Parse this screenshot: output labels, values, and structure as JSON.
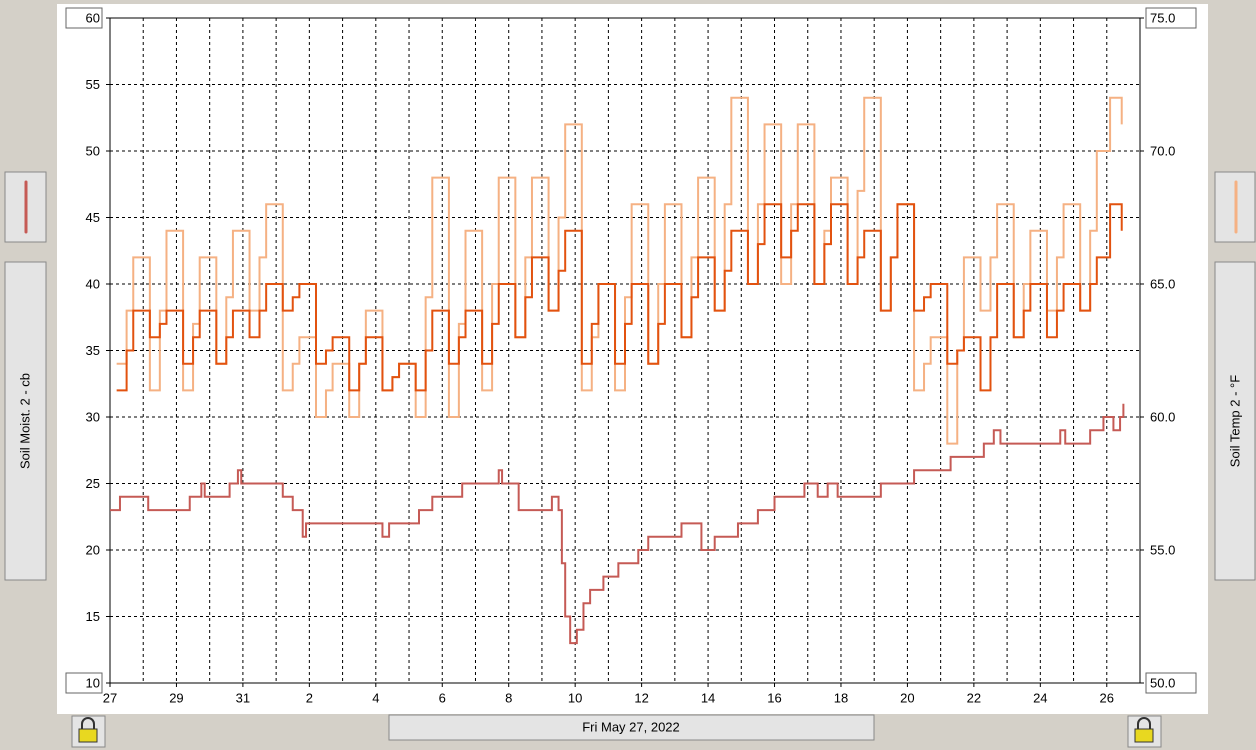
{
  "chart_data": {
    "type": "step-line",
    "ylabel": "Soil Moist. 2 - cb",
    "y2label": "Soil Temp 2 - °F",
    "date_label": "Fri May 27, 2022",
    "xlim": [
      0,
      31
    ],
    "xticks": [
      {
        "value": 0,
        "label": "27"
      },
      {
        "value": 2,
        "label": "29"
      },
      {
        "value": 4,
        "label": "31"
      },
      {
        "value": 6,
        "label": "2"
      },
      {
        "value": 8,
        "label": "4"
      },
      {
        "value": 10,
        "label": "6"
      },
      {
        "value": 12,
        "label": "8"
      },
      {
        "value": 14,
        "label": "10"
      },
      {
        "value": 16,
        "label": "12"
      },
      {
        "value": 18,
        "label": "14"
      },
      {
        "value": 20,
        "label": "16"
      },
      {
        "value": 22,
        "label": "18"
      },
      {
        "value": 24,
        "label": "20"
      },
      {
        "value": 26,
        "label": "22"
      },
      {
        "value": 28,
        "label": "24"
      },
      {
        "value": 30,
        "label": "26"
      }
    ],
    "xminorticks": [
      1,
      3,
      5,
      7,
      9,
      11,
      13,
      15,
      17,
      19,
      21,
      23,
      25,
      27,
      29
    ],
    "ylim": [
      10,
      60
    ],
    "yticks": [
      10,
      15,
      20,
      25,
      30,
      35,
      40,
      45,
      50,
      55,
      60
    ],
    "y2lim": [
      50,
      75
    ],
    "y2ticks": [
      {
        "value": 50,
        "label": "50.0"
      },
      {
        "value": 55,
        "label": "55.0"
      },
      {
        "value": 60,
        "label": "60.0"
      },
      {
        "value": 65,
        "label": "65.0"
      },
      {
        "value": 70,
        "label": "70.0"
      },
      {
        "value": 75,
        "label": "75.0"
      }
    ],
    "grid": true,
    "series": [
      {
        "color": "#f5b183",
        "axis": "y2",
        "x": [
          0.2,
          0.5,
          0.7,
          1.2,
          1.5,
          1.7,
          2.2,
          2.5,
          2.7,
          3.2,
          3.5,
          3.7,
          4.2,
          4.5,
          4.7,
          5.2,
          5.5,
          5.7,
          6.2,
          6.5,
          6.7,
          7.2,
          7.5,
          7.7,
          8.2,
          8.5,
          8.7,
          9.2,
          9.5,
          9.7,
          10.2,
          10.5,
          10.7,
          11.2,
          11.5,
          11.7,
          12.2,
          12.5,
          12.7,
          13.2,
          13.5,
          13.7,
          14.2,
          14.5,
          14.7,
          15.2,
          15.5,
          15.7,
          16.2,
          16.5,
          16.7,
          17.2,
          17.5,
          17.7,
          18.2,
          18.5,
          18.7,
          19.2,
          19.5,
          19.7,
          20.2,
          20.5,
          20.7,
          21.2,
          21.5,
          21.7,
          22.2,
          22.5,
          22.7,
          23.2,
          23.5,
          23.7,
          24.2,
          24.5,
          24.7,
          25.2,
          25.5,
          25.7,
          26.2,
          26.5,
          26.7,
          27.2,
          27.5,
          27.7,
          28.2,
          28.5,
          28.7,
          29.2,
          29.5,
          29.7,
          30.1,
          30.45
        ],
        "values": [
          62,
          64,
          66,
          61,
          64,
          67,
          61,
          63.5,
          66,
          62,
          64.5,
          67,
          64,
          66,
          68,
          61,
          62,
          63,
          60,
          61,
          62,
          60,
          62,
          64,
          61,
          61.5,
          62,
          60,
          64.5,
          69,
          60,
          63.5,
          67,
          61,
          65,
          69,
          63,
          66,
          69,
          64,
          67.5,
          71,
          61,
          63,
          65,
          61,
          64.5,
          68,
          62,
          65,
          68,
          63,
          66,
          69,
          64,
          68,
          72,
          65,
          68,
          71,
          65,
          68,
          71,
          65,
          67,
          69,
          65,
          68.5,
          72,
          64,
          66,
          68,
          61,
          62,
          63,
          59,
          62.5,
          66,
          64,
          66,
          68,
          63,
          65,
          67,
          64,
          66,
          68,
          64,
          67,
          70,
          72,
          71
        ]
      },
      {
        "color": "#e2520f",
        "axis": "y2",
        "x": [
          0.2,
          0.5,
          0.7,
          1.2,
          1.5,
          1.7,
          2.2,
          2.5,
          2.7,
          3.2,
          3.5,
          3.7,
          4.2,
          4.5,
          4.7,
          5.2,
          5.5,
          5.7,
          6.2,
          6.5,
          6.7,
          7.2,
          7.5,
          7.7,
          8.2,
          8.5,
          8.7,
          9.2,
          9.5,
          9.7,
          10.2,
          10.5,
          10.7,
          11.2,
          11.5,
          11.7,
          12.2,
          12.5,
          12.7,
          13.2,
          13.5,
          13.7,
          14.2,
          14.5,
          14.7,
          15.2,
          15.5,
          15.7,
          16.2,
          16.5,
          16.7,
          17.2,
          17.5,
          17.7,
          18.2,
          18.5,
          18.7,
          19.2,
          19.5,
          19.7,
          20.2,
          20.5,
          20.7,
          21.2,
          21.5,
          21.7,
          22.2,
          22.5,
          22.7,
          23.2,
          23.5,
          23.7,
          24.2,
          24.5,
          24.7,
          25.2,
          25.5,
          25.7,
          26.2,
          26.5,
          26.7,
          27.2,
          27.5,
          27.7,
          28.2,
          28.5,
          28.7,
          29.2,
          29.5,
          29.7,
          30.1,
          30.45
        ],
        "values": [
          61,
          62.5,
          64,
          63,
          63.5,
          64,
          62,
          63,
          64,
          62,
          63,
          64,
          63,
          64,
          65,
          64,
          64.5,
          65,
          62,
          62.5,
          63,
          61,
          62,
          63,
          61,
          61.5,
          62,
          61,
          62.5,
          64,
          62,
          63,
          64,
          62,
          63.5,
          65,
          63,
          64.5,
          66,
          64,
          65.5,
          67,
          62,
          63.5,
          65,
          62,
          63.5,
          65,
          62,
          63.5,
          65,
          63,
          64.5,
          66,
          64,
          65.5,
          67,
          65,
          66.5,
          68,
          66,
          67,
          68,
          65,
          66.5,
          68,
          65,
          66,
          67,
          64,
          66,
          68,
          64,
          64.5,
          65,
          62,
          62.5,
          63,
          61,
          63,
          65,
          63,
          64,
          65,
          63,
          64,
          65,
          64,
          65,
          66,
          68,
          67
        ]
      },
      {
        "color": "#c55a55",
        "x": [
          0,
          0.3,
          1.15,
          2.4,
          2.75,
          2.85,
          3.6,
          3.85,
          3.95,
          5.2,
          5.5,
          5.8,
          5.9,
          8.2,
          8.4,
          9.3,
          9.7,
          10.6,
          11.7,
          11.8,
          12.3,
          13.3,
          13.5,
          13.6,
          13.7,
          13.85,
          14.05,
          14.25,
          14.45,
          14.85,
          15.3,
          15.9,
          16.2,
          17.2,
          17.8,
          18.2,
          18.9,
          19.5,
          20.0,
          20.9,
          21.3,
          21.6,
          21.9,
          23.2,
          24.2,
          25.3,
          26.3,
          26.6,
          26.8,
          28.6,
          28.75,
          29.5,
          29.9,
          30.2,
          30.4,
          30.5
        ],
        "values": [
          23,
          24,
          23,
          24,
          25,
          24,
          25,
          26,
          25,
          24,
          23,
          21,
          22,
          21,
          22,
          23,
          24,
          25,
          26,
          25,
          23,
          24,
          23,
          19,
          15,
          13,
          14,
          16,
          17,
          18,
          19,
          20,
          21,
          22,
          20,
          21,
          22,
          23,
          24,
          25,
          24,
          25,
          24,
          25,
          26,
          27,
          28,
          29,
          28,
          29,
          28,
          29,
          30,
          29,
          30,
          31
        ]
      }
    ]
  }
}
